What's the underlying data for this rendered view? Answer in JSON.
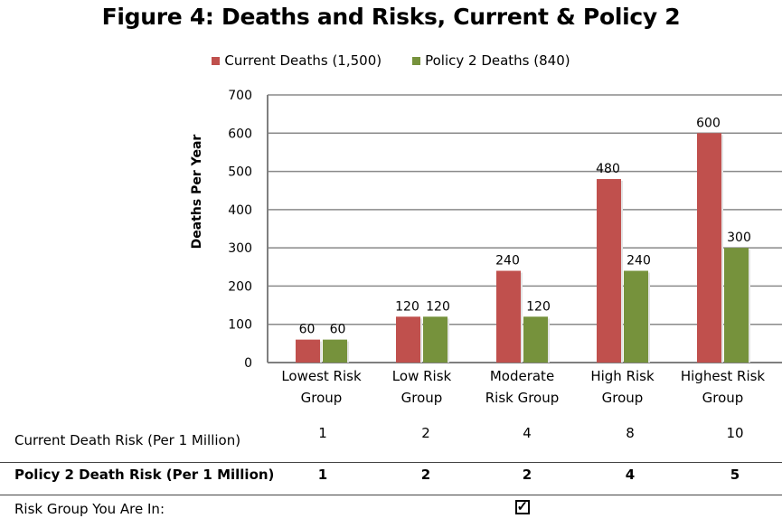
{
  "chart_data": {
    "type": "bar",
    "title": "Figure 4: Deaths and Risks, Current & Policy 2",
    "xlabel": "",
    "ylabel": "Deaths Per Year",
    "ylim": [
      0,
      700
    ],
    "yticks": [
      0,
      100,
      200,
      300,
      400,
      500,
      600,
      700
    ],
    "grid": true,
    "legend_position": "top",
    "categories": [
      "Lowest Risk Group",
      "Low Risk Group",
      "Moderate Risk Group",
      "High Risk Group",
      "Highest Risk Group"
    ],
    "category_lines": [
      [
        "Lowest Risk",
        "Group"
      ],
      [
        "Low Risk",
        "Group"
      ],
      [
        "Moderate",
        "Risk Group"
      ],
      [
        "High Risk",
        "Group"
      ],
      [
        "Highest Risk",
        "Group"
      ]
    ],
    "series": [
      {
        "name": "Current Deaths (1,500)",
        "color": "#c0504d",
        "values": [
          60,
          120,
          240,
          480,
          600
        ]
      },
      {
        "name": "Policy 2 Deaths (840)",
        "color": "#76923c",
        "values": [
          60,
          120,
          120,
          240,
          300
        ]
      }
    ]
  },
  "table": {
    "rows": [
      {
        "label": "Current Death Risk (Per 1 Million)",
        "bold": false,
        "values": [
          "1",
          "2",
          "4",
          "8",
          "10"
        ]
      },
      {
        "label": "Policy 2 Death Risk (Per 1 Million)",
        "bold": true,
        "values": [
          "1",
          "2",
          "2",
          "4",
          "5"
        ]
      }
    ],
    "risk_group_label": "Risk Group You Are In:",
    "risk_group_checked_index": 2,
    "check_glyph": "✓"
  }
}
